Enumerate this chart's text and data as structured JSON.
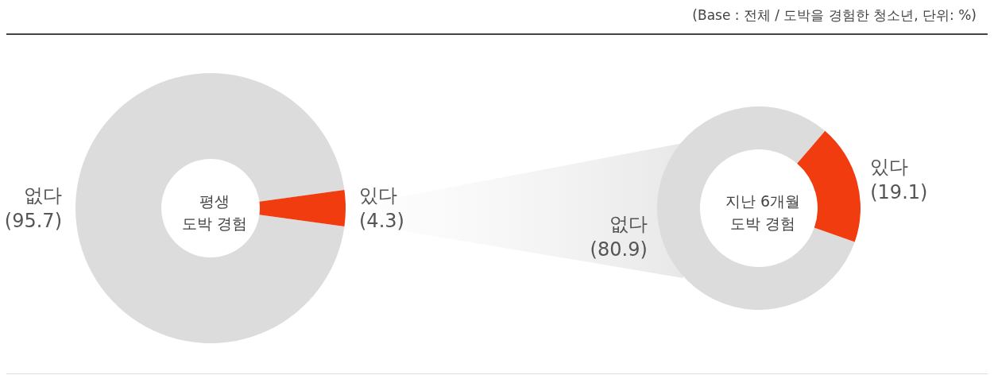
{
  "chart_data": [
    {
      "type": "donut",
      "title": "평생\n도박 경험",
      "categories": [
        "없다",
        "있다"
      ],
      "values": [
        95.7,
        4.3
      ],
      "colors": [
        "#dcdcdc",
        "#f03c0f"
      ],
      "value_labels": [
        "(95.7)",
        "(4.3)"
      ],
      "legend": false,
      "annotations": [
        "(Base : 전체 / 도박을 경험한 청소년, 단위: %)"
      ]
    },
    {
      "type": "donut",
      "title": "지난 6개월\n도박 경험",
      "categories": [
        "없다",
        "있다"
      ],
      "values": [
        80.9,
        19.1
      ],
      "colors": [
        "#dcdcdc",
        "#f03c0f"
      ],
      "value_labels": [
        "(80.9)",
        "(19.1)"
      ],
      "legend": false
    }
  ]
}
